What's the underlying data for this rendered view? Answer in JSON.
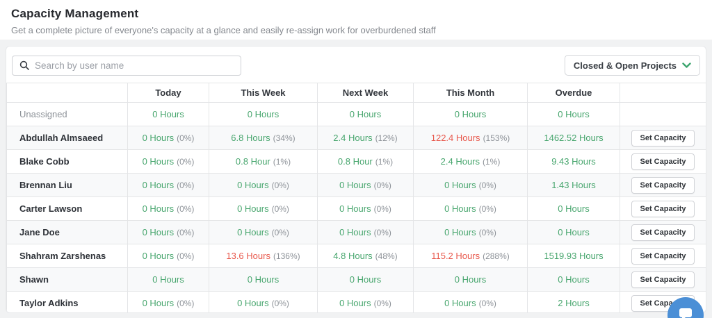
{
  "page": {
    "title": "Capacity Management",
    "subtitle": "Get a complete picture of everyone's capacity at a glance and easily re-assign work for overburdened staff"
  },
  "toolbar": {
    "search_placeholder": "Search by user name",
    "search_value": "",
    "search_icon": "magnifier-icon",
    "filter_dropdown": {
      "label": "Closed & Open Projects",
      "icon": "chevron-down-icon"
    }
  },
  "colors": {
    "green": "#48a66e",
    "red": "#e8584c",
    "percent_gray": "#8d9298",
    "chat_blue": "#4b8fd6",
    "chevron_green": "#3da56f"
  },
  "table": {
    "columns": [
      "",
      "Today",
      "This Week",
      "Next Week",
      "This Month",
      "Overdue",
      ""
    ],
    "set_capacity_label": "Set Capacity",
    "rows": [
      {
        "name": "Unassigned",
        "muted": true,
        "has_button": false,
        "cells": [
          {
            "hours": "0 Hours",
            "color": "green"
          },
          {
            "hours": "0 Hours",
            "color": "green"
          },
          {
            "hours": "0 Hours",
            "color": "green"
          },
          {
            "hours": "0 Hours",
            "color": "green"
          },
          {
            "hours": "0 Hours",
            "color": "green"
          }
        ]
      },
      {
        "name": "Abdullah Almsaeed",
        "muted": false,
        "has_button": true,
        "cells": [
          {
            "hours": "0 Hours",
            "percent": "(0%)",
            "color": "green"
          },
          {
            "hours": "6.8 Hours",
            "percent": "(34%)",
            "color": "green"
          },
          {
            "hours": "2.4 Hours",
            "percent": "(12%)",
            "color": "green"
          },
          {
            "hours": "122.4 Hours",
            "percent": "(153%)",
            "color": "red"
          },
          {
            "hours": "1462.52 Hours",
            "color": "green"
          }
        ]
      },
      {
        "name": "Blake Cobb",
        "muted": false,
        "has_button": true,
        "cells": [
          {
            "hours": "0 Hours",
            "percent": "(0%)",
            "color": "green"
          },
          {
            "hours": "0.8 Hour",
            "percent": "(1%)",
            "color": "green"
          },
          {
            "hours": "0.8 Hour",
            "percent": "(1%)",
            "color": "green"
          },
          {
            "hours": "2.4 Hours",
            "percent": "(1%)",
            "color": "green"
          },
          {
            "hours": "9.43 Hours",
            "color": "green"
          }
        ]
      },
      {
        "name": "Brennan Liu",
        "muted": false,
        "has_button": true,
        "cells": [
          {
            "hours": "0 Hours",
            "percent": "(0%)",
            "color": "green"
          },
          {
            "hours": "0 Hours",
            "percent": "(0%)",
            "color": "green"
          },
          {
            "hours": "0 Hours",
            "percent": "(0%)",
            "color": "green"
          },
          {
            "hours": "0 Hours",
            "percent": "(0%)",
            "color": "green"
          },
          {
            "hours": "1.43 Hours",
            "color": "green"
          }
        ]
      },
      {
        "name": "Carter Lawson",
        "muted": false,
        "has_button": true,
        "cells": [
          {
            "hours": "0 Hours",
            "percent": "(0%)",
            "color": "green"
          },
          {
            "hours": "0 Hours",
            "percent": "(0%)",
            "color": "green"
          },
          {
            "hours": "0 Hours",
            "percent": "(0%)",
            "color": "green"
          },
          {
            "hours": "0 Hours",
            "percent": "(0%)",
            "color": "green"
          },
          {
            "hours": "0 Hours",
            "color": "green"
          }
        ]
      },
      {
        "name": "Jane Doe",
        "muted": false,
        "has_button": true,
        "cells": [
          {
            "hours": "0 Hours",
            "percent": "(0%)",
            "color": "green"
          },
          {
            "hours": "0 Hours",
            "percent": "(0%)",
            "color": "green"
          },
          {
            "hours": "0 Hours",
            "percent": "(0%)",
            "color": "green"
          },
          {
            "hours": "0 Hours",
            "percent": "(0%)",
            "color": "green"
          },
          {
            "hours": "0 Hours",
            "color": "green"
          }
        ]
      },
      {
        "name": "Shahram Zarshenas",
        "muted": false,
        "has_button": true,
        "cells": [
          {
            "hours": "0 Hours",
            "percent": "(0%)",
            "color": "green"
          },
          {
            "hours": "13.6 Hours",
            "percent": "(136%)",
            "color": "red"
          },
          {
            "hours": "4.8 Hours",
            "percent": "(48%)",
            "color": "green"
          },
          {
            "hours": "115.2 Hours",
            "percent": "(288%)",
            "color": "red"
          },
          {
            "hours": "1519.93 Hours",
            "color": "green"
          }
        ]
      },
      {
        "name": "Shawn",
        "muted": false,
        "has_button": true,
        "cells": [
          {
            "hours": "0 Hours",
            "color": "green"
          },
          {
            "hours": "0 Hours",
            "color": "green"
          },
          {
            "hours": "0 Hours",
            "color": "green"
          },
          {
            "hours": "0 Hours",
            "color": "green"
          },
          {
            "hours": "0 Hours",
            "color": "green"
          }
        ]
      },
      {
        "name": "Taylor Adkins",
        "muted": false,
        "has_button": true,
        "cells": [
          {
            "hours": "0 Hours",
            "percent": "(0%)",
            "color": "green"
          },
          {
            "hours": "0 Hours",
            "percent": "(0%)",
            "color": "green"
          },
          {
            "hours": "0 Hours",
            "percent": "(0%)",
            "color": "green"
          },
          {
            "hours": "0 Hours",
            "percent": "(0%)",
            "color": "green"
          },
          {
            "hours": "2 Hours",
            "color": "green"
          }
        ]
      }
    ]
  },
  "chat_widget": {
    "icon": "chat-bubble-icon"
  }
}
